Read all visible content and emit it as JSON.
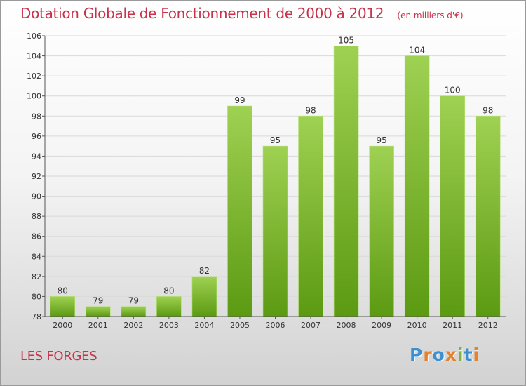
{
  "header": {
    "title": "Dotation Globale de Fonctionnement de 2000 à 2012",
    "unit": "(en milliers d'€)"
  },
  "footer": {
    "commune": "LES FORGES",
    "logo_text": "Proxiti"
  },
  "colors": {
    "bar_top": "#9fd152",
    "bar_bottom": "#5c9a12",
    "title": "#c8324a",
    "grid": "#d9d9d9",
    "axis": "#555555"
  },
  "chart_data": {
    "type": "bar",
    "title": "Dotation Globale de Fonctionnement de 2000 à 2012",
    "xlabel": "",
    "ylabel": "",
    "categories": [
      "2000",
      "2001",
      "2002",
      "2003",
      "2004",
      "2005",
      "2006",
      "2007",
      "2008",
      "2009",
      "2010",
      "2011",
      "2012"
    ],
    "values": [
      80,
      79,
      79,
      80,
      82,
      99,
      95,
      98,
      105,
      95,
      104,
      100,
      98
    ],
    "ylim": [
      78,
      106
    ],
    "yticks": [
      78,
      80,
      82,
      84,
      86,
      88,
      90,
      92,
      94,
      96,
      98,
      100,
      102,
      104,
      106
    ],
    "grid": true,
    "legend": "none"
  }
}
